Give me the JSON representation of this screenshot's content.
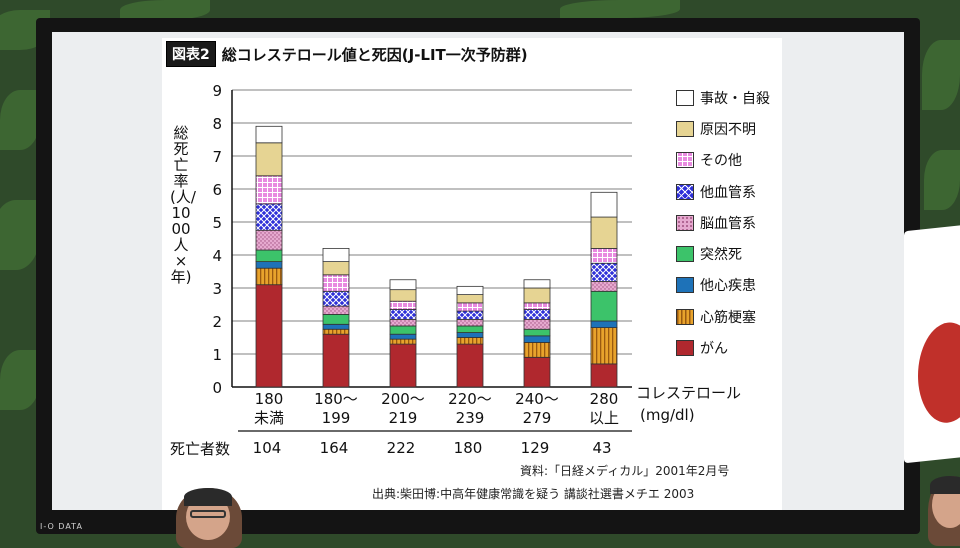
{
  "title": {
    "tag": "図表2",
    "text": "総コレステロール値と死因(J-LIT一次予防群)"
  },
  "brand": "I-O DATA",
  "chart_data": {
    "type": "bar",
    "stacked": true,
    "ylabel": "総死亡率(人/1000人×年)",
    "ylim": [
      0,
      9
    ],
    "yticks": [
      0,
      1,
      2,
      3,
      4,
      5,
      6,
      7,
      8,
      9
    ],
    "grid": true,
    "legend_position": "right",
    "xlabel": "コレステロール",
    "xunit": "(mg/dl)",
    "categories": [
      {
        "line1": "180",
        "line2": "未満"
      },
      {
        "line1": "180〜",
        "line2": "199"
      },
      {
        "line1": "200〜",
        "line2": "219"
      },
      {
        "line1": "220〜",
        "line2": "239"
      },
      {
        "line1": "240〜",
        "line2": "279"
      },
      {
        "line1": "280",
        "line2": "以上"
      }
    ],
    "deaths_label": "死亡者数",
    "deaths": [
      "104",
      "164",
      "222",
      "180",
      "129",
      "43"
    ],
    "series": [
      {
        "name": "がん",
        "color": "#b0282e",
        "pattern": "solid",
        "values": [
          3.1,
          1.6,
          1.3,
          1.3,
          0.9,
          0.7
        ]
      },
      {
        "name": "心筋梗塞",
        "color": "#e8a32c",
        "pattern": "vlines",
        "values": [
          0.5,
          0.15,
          0.15,
          0.2,
          0.45,
          1.1
        ]
      },
      {
        "name": "他心疾患",
        "color": "#1e72b8",
        "pattern": "solid",
        "values": [
          0.2,
          0.15,
          0.15,
          0.15,
          0.2,
          0.2
        ]
      },
      {
        "name": "突然死",
        "color": "#3cc36a",
        "pattern": "solid",
        "values": [
          0.35,
          0.3,
          0.25,
          0.2,
          0.2,
          0.9
        ]
      },
      {
        "name": "脳血管系",
        "color": "#e6a9cf",
        "pattern": "dots",
        "values": [
          0.6,
          0.25,
          0.2,
          0.2,
          0.3,
          0.3
        ]
      },
      {
        "name": "他血管系",
        "color": "#2d2fd8",
        "pattern": "cross",
        "values": [
          0.8,
          0.45,
          0.3,
          0.25,
          0.3,
          0.55
        ]
      },
      {
        "name": "その他",
        "color": "#e88ae0",
        "pattern": "grid",
        "values": [
          0.85,
          0.5,
          0.25,
          0.25,
          0.2,
          0.45
        ]
      },
      {
        "name": "原因不明",
        "color": "#e6d493",
        "pattern": "solid",
        "values": [
          1.0,
          0.4,
          0.35,
          0.25,
          0.45,
          0.95
        ]
      },
      {
        "name": "事故・自殺",
        "color": "#ffffff",
        "pattern": "solid",
        "values": [
          0.5,
          0.4,
          0.3,
          0.25,
          0.25,
          0.75
        ]
      }
    ]
  },
  "sources": {
    "line1": "資料:「日経メディカル」2001年2月号",
    "line2": "出典:柴田博:中高年健康常識を疑う 講談社選書メチエ 2003"
  }
}
